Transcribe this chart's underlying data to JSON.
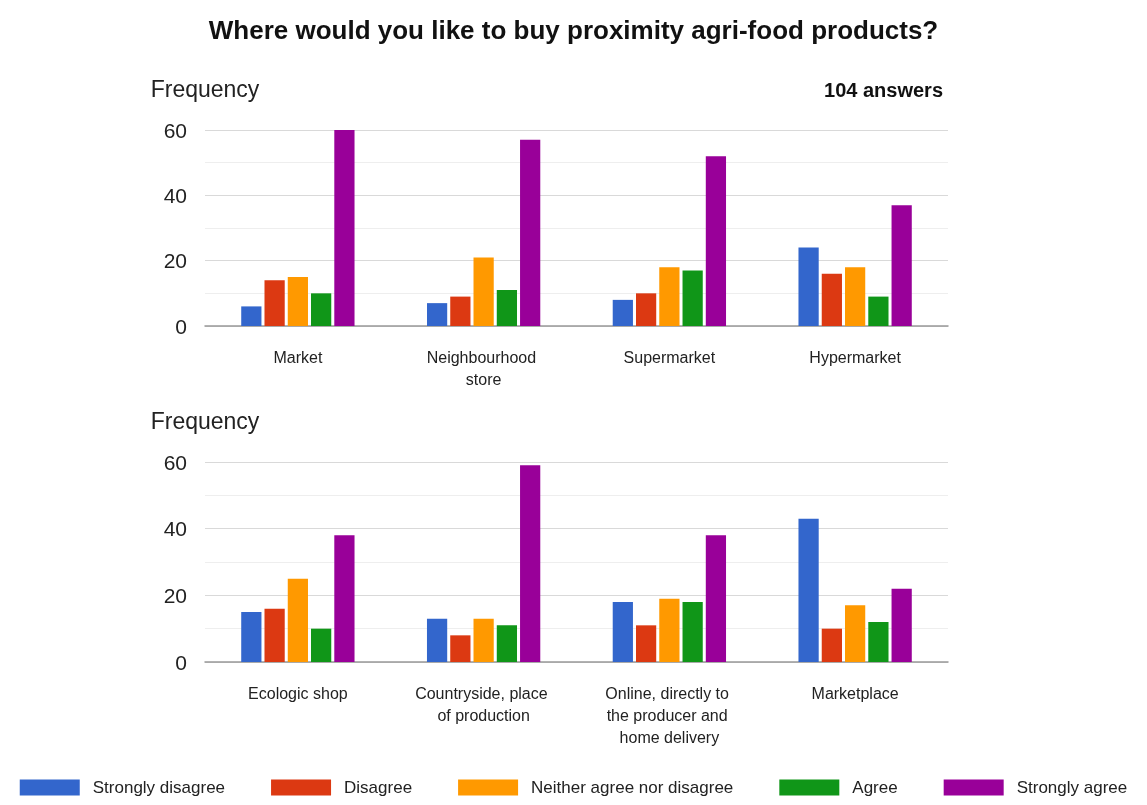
{
  "chart_data": [
    {
      "type": "bar",
      "title": "Where would you like to buy proximity agri-food products?",
      "ylabel": "Frequency",
      "annotations": [
        "104 answers"
      ],
      "categories": [
        "Market",
        "Neighbourhood store",
        "Supermarket",
        "Hypermarket"
      ],
      "series": [
        {
          "color": "#3366cc",
          "values": [
            6,
            7,
            8,
            24
          ]
        },
        {
          "color": "#dc3912",
          "values": [
            14,
            9,
            10,
            16
          ]
        },
        {
          "color": "#ff9900",
          "values": [
            15,
            21,
            18,
            18
          ]
        },
        {
          "color": "#109618",
          "values": [
            10,
            11,
            17,
            9
          ]
        },
        {
          "color": "#990099",
          "values": [
            60,
            57,
            52,
            37
          ]
        }
      ],
      "ylim": [
        0,
        60
      ],
      "yticks": [
        0,
        {
          "value": 10,
          "label": null
        },
        20,
        {
          "value": 30,
          "label": null
        },
        40,
        {
          "value": 50,
          "label": null
        },
        60
      ],
      "grid": "y",
      "legend": false
    },
    {
      "type": "bar",
      "ylabel": "Frequency",
      "categories": [
        "Ecologic shop",
        "Countryside, place of production",
        "Online, directly to the producer and home delivery",
        "Marketplace"
      ],
      "series": [
        {
          "name": "Strongly disagree",
          "color": "#3366cc",
          "values": [
            15,
            13,
            18,
            43
          ]
        },
        {
          "name": "Disagree",
          "color": "#dc3912",
          "values": [
            16,
            8,
            11,
            10
          ]
        },
        {
          "name": "Neither agree nor disagree",
          "color": "#ff9900",
          "values": [
            25,
            13,
            19,
            17
          ]
        },
        {
          "name": "Agree",
          "color": "#109618",
          "values": [
            10,
            11,
            18,
            12
          ]
        },
        {
          "name": "Strongly agree",
          "color": "#990099",
          "values": [
            38,
            59,
            38,
            22
          ]
        }
      ],
      "ylim": [
        0,
        60
      ],
      "yticks": [
        0,
        {
          "value": 10,
          "label": null
        },
        20,
        {
          "value": 30,
          "label": null
        },
        40,
        {
          "value": 50,
          "label": null
        },
        60
      ],
      "grid": "y",
      "legend": "bottom"
    }
  ]
}
